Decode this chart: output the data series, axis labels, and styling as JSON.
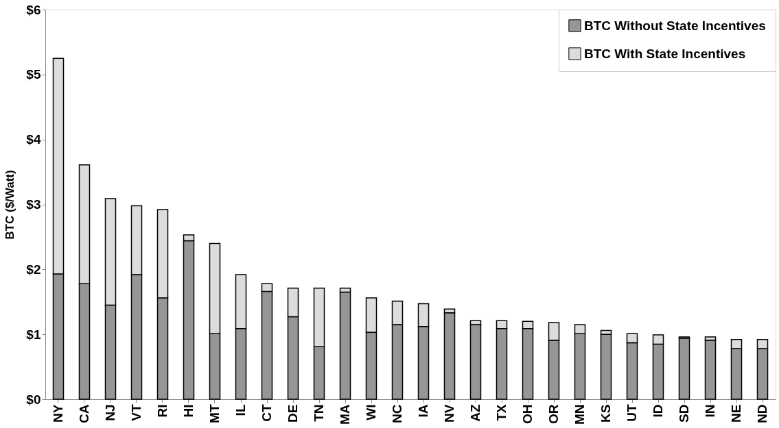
{
  "chart_data": {
    "type": "bar",
    "stacked": true,
    "ylabel": "BTC ($/Watt)",
    "categories": [
      "NY",
      "CA",
      "NJ",
      "VT",
      "RI",
      "HI",
      "MT",
      "IL",
      "CT",
      "DE",
      "TN",
      "MA",
      "WI",
      "NC",
      "IA",
      "NV",
      "AZ",
      "TX",
      "OH",
      "OR",
      "MN",
      "KS",
      "UT",
      "ID",
      "SD",
      "IN",
      "NE",
      "ND"
    ],
    "series": [
      {
        "name": "BTC Without State Incentives",
        "color": "#969696",
        "values": [
          1.93,
          1.78,
          1.45,
          1.92,
          1.56,
          2.44,
          1.01,
          1.09,
          1.66,
          1.27,
          0.81,
          1.65,
          1.03,
          1.15,
          1.12,
          1.33,
          1.15,
          1.09,
          1.09,
          0.91,
          1.01,
          1.0,
          0.87,
          0.85,
          0.94,
          0.91,
          0.78,
          0.78
        ]
      },
      {
        "name": "BTC With State Incentives",
        "color": "#dcdcdc",
        "values": [
          3.32,
          1.83,
          1.64,
          1.06,
          1.36,
          0.09,
          1.39,
          0.83,
          0.12,
          0.44,
          0.9,
          0.06,
          0.53,
          0.36,
          0.35,
          0.06,
          0.06,
          0.12,
          0.11,
          0.27,
          0.14,
          0.06,
          0.14,
          0.14,
          0.02,
          0.05,
          0.14,
          0.14
        ]
      }
    ],
    "ylim": [
      0,
      6
    ],
    "yticks": [
      {
        "value": 0,
        "label": "$0"
      },
      {
        "value": 1,
        "label": "$1"
      },
      {
        "value": 2,
        "label": "$2"
      },
      {
        "value": 3,
        "label": "$3"
      },
      {
        "value": 4,
        "label": "$4"
      },
      {
        "value": 5,
        "label": "$5"
      },
      {
        "value": 6,
        "label": "$6"
      }
    ],
    "grid": false,
    "legend": "top right"
  }
}
